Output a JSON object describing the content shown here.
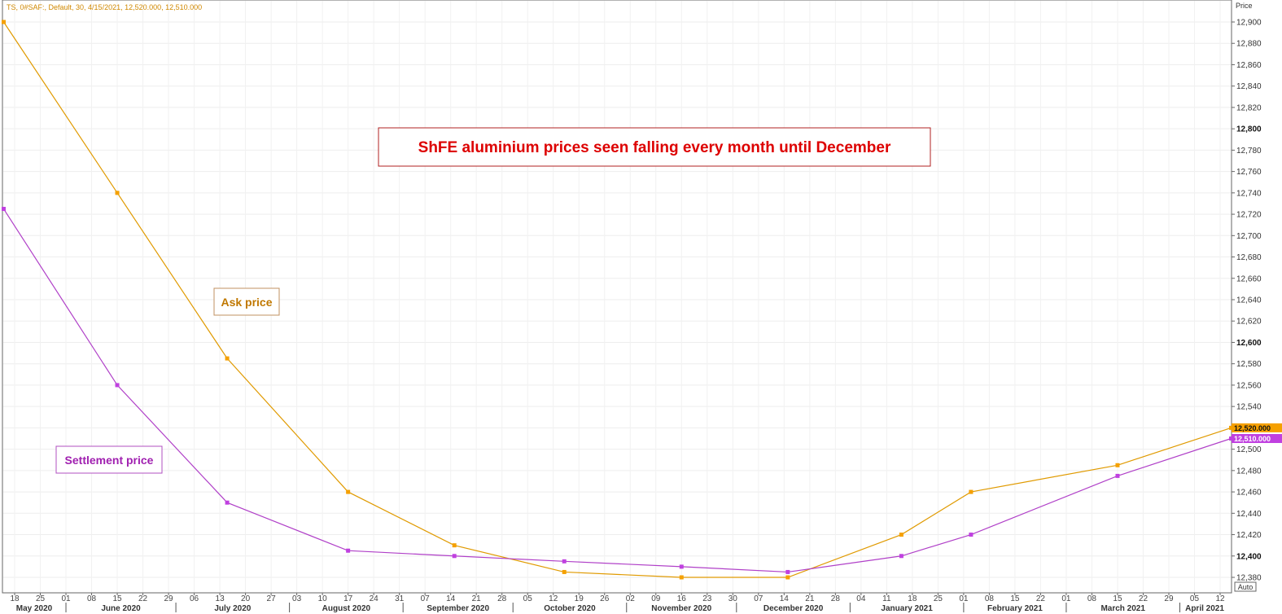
{
  "chart_data": {
    "type": "line",
    "header": "TS, 0#SAF:, Default,  30,  4/15/2021, 12,520.000,  12,510.000",
    "ylabel": "Price",
    "ylim": [
      12370,
      12910
    ],
    "yticks": [
      12380,
      12400,
      12420,
      12440,
      12460,
      12480,
      12500,
      12520,
      12540,
      12560,
      12580,
      12600,
      12620,
      12640,
      12660,
      12680,
      12700,
      12720,
      12740,
      12760,
      12780,
      12800,
      12820,
      12840,
      12860,
      12880,
      12900
    ],
    "ytick_labels": [
      "12,380",
      "12,400",
      "12,420",
      "12,440",
      "12,460",
      "12,480",
      "12,500",
      "12,520",
      "12,540",
      "12,560",
      "12,580",
      "12,600",
      "12,620",
      "12,640",
      "12,660",
      "12,680",
      "12,700",
      "12,720",
      "12,740",
      "12,760",
      "12,780",
      "12,800",
      "12,820",
      "12,840",
      "12,860",
      "12,880",
      "12,900"
    ],
    "bold_ticks": [
      "12,400",
      "12,600",
      "12,800"
    ],
    "auto_label": "Auto",
    "x_days": [
      {
        "date": "2020-05-18",
        "label": "18"
      },
      {
        "date": "2020-05-25",
        "label": "25"
      },
      {
        "date": "2020-06-01",
        "label": "01"
      },
      {
        "date": "2020-06-08",
        "label": "08"
      },
      {
        "date": "2020-06-15",
        "label": "15"
      },
      {
        "date": "2020-06-22",
        "label": "22"
      },
      {
        "date": "2020-06-29",
        "label": "29"
      },
      {
        "date": "2020-07-06",
        "label": "06"
      },
      {
        "date": "2020-07-13",
        "label": "13"
      },
      {
        "date": "2020-07-20",
        "label": "20"
      },
      {
        "date": "2020-07-27",
        "label": "27"
      },
      {
        "date": "2020-08-03",
        "label": "03"
      },
      {
        "date": "2020-08-10",
        "label": "10"
      },
      {
        "date": "2020-08-17",
        "label": "17"
      },
      {
        "date": "2020-08-24",
        "label": "24"
      },
      {
        "date": "2020-08-31",
        "label": "31"
      },
      {
        "date": "2020-09-07",
        "label": "07"
      },
      {
        "date": "2020-09-14",
        "label": "14"
      },
      {
        "date": "2020-09-21",
        "label": "21"
      },
      {
        "date": "2020-09-28",
        "label": "28"
      },
      {
        "date": "2020-10-05",
        "label": "05"
      },
      {
        "date": "2020-10-12",
        "label": "12"
      },
      {
        "date": "2020-10-19",
        "label": "19"
      },
      {
        "date": "2020-10-26",
        "label": "26"
      },
      {
        "date": "2020-11-02",
        "label": "02"
      },
      {
        "date": "2020-11-09",
        "label": "09"
      },
      {
        "date": "2020-11-16",
        "label": "16"
      },
      {
        "date": "2020-11-23",
        "label": "23"
      },
      {
        "date": "2020-11-30",
        "label": "30"
      },
      {
        "date": "2020-12-07",
        "label": "07"
      },
      {
        "date": "2020-12-14",
        "label": "14"
      },
      {
        "date": "2020-12-21",
        "label": "21"
      },
      {
        "date": "2020-12-28",
        "label": "28"
      },
      {
        "date": "2021-01-04",
        "label": "04"
      },
      {
        "date": "2021-01-11",
        "label": "11"
      },
      {
        "date": "2021-01-18",
        "label": "18"
      },
      {
        "date": "2021-01-25",
        "label": "25"
      },
      {
        "date": "2021-02-01",
        "label": "01"
      },
      {
        "date": "2021-02-08",
        "label": "08"
      },
      {
        "date": "2021-02-15",
        "label": "15"
      },
      {
        "date": "2021-02-22",
        "label": "22"
      },
      {
        "date": "2021-03-01",
        "label": "01"
      },
      {
        "date": "2021-03-08",
        "label": "08"
      },
      {
        "date": "2021-03-15",
        "label": "15"
      },
      {
        "date": "2021-03-22",
        "label": "22"
      },
      {
        "date": "2021-03-29",
        "label": "29"
      },
      {
        "date": "2021-04-05",
        "label": "05"
      },
      {
        "date": "2021-04-12",
        "label": "12"
      }
    ],
    "x_months": [
      {
        "date": "2020-05-01",
        "label": "May 2020"
      },
      {
        "date": "2020-06-01",
        "label": "June 2020"
      },
      {
        "date": "2020-07-01",
        "label": "July 2020"
      },
      {
        "date": "2020-08-01",
        "label": "August 2020"
      },
      {
        "date": "2020-09-01",
        "label": "September 2020"
      },
      {
        "date": "2020-10-01",
        "label": "October 2020"
      },
      {
        "date": "2020-11-01",
        "label": "November 2020"
      },
      {
        "date": "2020-12-01",
        "label": "December 2020"
      },
      {
        "date": "2021-01-01",
        "label": "January 2021"
      },
      {
        "date": "2021-02-01",
        "label": "February 2021"
      },
      {
        "date": "2021-03-01",
        "label": "March 2021"
      },
      {
        "date": "2021-04-01",
        "label": "April 2021"
      }
    ],
    "series": [
      {
        "color": "#E09A00",
        "marker_color": "#F5A000",
        "x": [
          "2020-05-15",
          "2020-06-15",
          "2020-07-15",
          "2020-08-17",
          "2020-09-15",
          "2020-10-15",
          "2020-11-16",
          "2020-12-15",
          "2021-01-15",
          "2021-02-03",
          "2021-03-15",
          "2021-04-15"
        ],
        "values": [
          12900,
          12740,
          12585,
          12460,
          12410,
          12385,
          12380,
          12380,
          12420,
          12460,
          12485,
          12520
        ],
        "last_label": "12,520.000"
      },
      {
        "color": "#B040C8",
        "marker_color": "#C040E0",
        "x": [
          "2020-05-15",
          "2020-06-15",
          "2020-07-15",
          "2020-08-17",
          "2020-09-15",
          "2020-10-15",
          "2020-11-16",
          "2020-12-15",
          "2021-01-15",
          "2021-02-03",
          "2021-03-15",
          "2021-04-15"
        ],
        "values": [
          12725,
          12560,
          12450,
          12405,
          12400,
          12395,
          12390,
          12385,
          12400,
          12420,
          12475,
          12510
        ],
        "last_label": "12,510.000"
      }
    ],
    "annotations": {
      "title": "ShFE aluminium prices seen falling every month until December",
      "ask": "Ask price",
      "settlement": "Settlement price"
    },
    "colors": {
      "title_text": "#DD0000",
      "title_border": "#B02020",
      "ask_text": "#C07800",
      "ask_border": "#C09060",
      "settle_text": "#A020B0",
      "settle_border": "#B050C0"
    }
  }
}
